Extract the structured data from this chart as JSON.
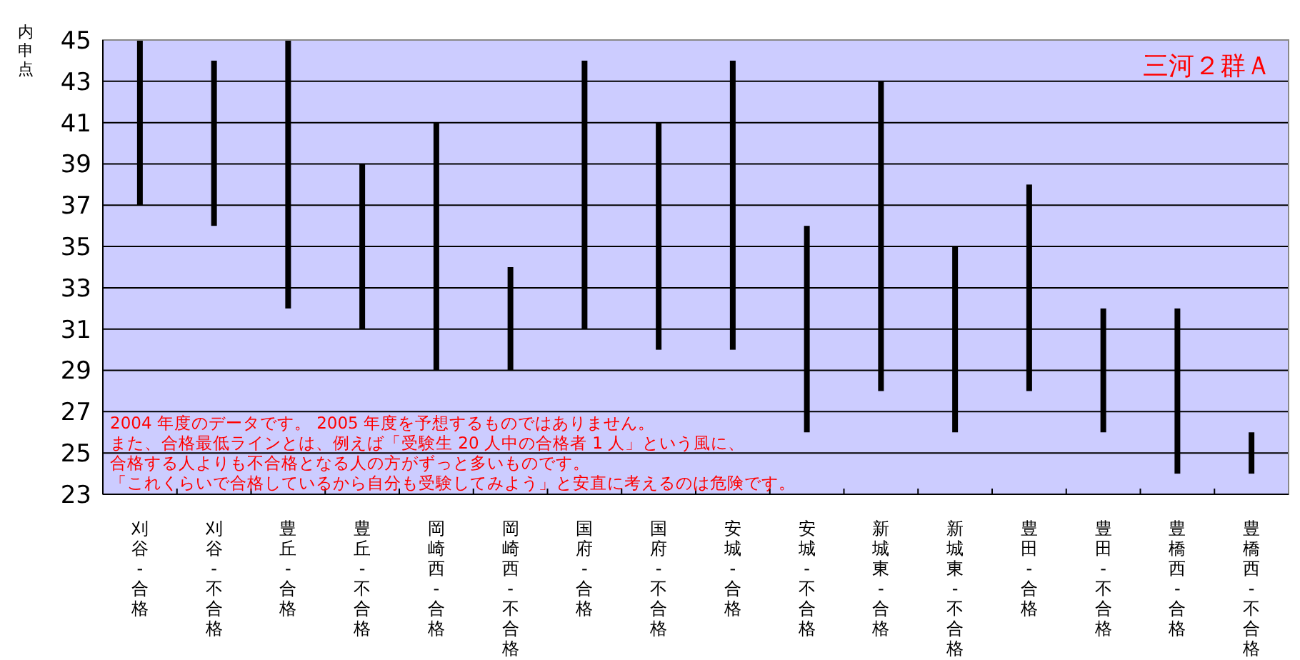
{
  "chart_data": {
    "type": "bar",
    "title": "三河２群Ａ",
    "ylabel": "内申点",
    "categories": [
      "刈谷-合格",
      "刈谷-不合格",
      "豊丘-合格",
      "豊丘-不合格",
      "岡崎西-合格",
      "岡崎西-不合格",
      "国府-合格",
      "国府-不合格",
      "安城-合格",
      "安城-不合格",
      "新城東-合格",
      "新城東-不合格",
      "豊田-合格",
      "豊田-不合格",
      "豊橋西-合格",
      "豊橋西-不合格"
    ],
    "base": [
      37,
      36,
      32,
      31,
      29,
      29,
      31,
      30,
      30,
      26,
      28,
      26,
      28,
      26,
      24,
      24
    ],
    "values": [
      8,
      8,
      13,
      8,
      12,
      5,
      13,
      11,
      14,
      10,
      15,
      9,
      10,
      6,
      8,
      2
    ],
    "color": "#000000",
    "ylim": [
      23,
      45
    ],
    "yticks": [
      23,
      25,
      27,
      29,
      31,
      33,
      35,
      37,
      39,
      41,
      43,
      45
    ],
    "grid": "y",
    "annotations": [
      "2004 年度のデータです。 2005 年度を予想するものではありません。",
      "また、合格最低ラインとは、例えば「受験生 20 人中の合格者 1 人」という風に、",
      "合格する人よりも不合格となる人の方がずっと多いものです。",
      "「これくらいで合格しているから自分も受験してみよう」と安直に考えるのは危険です。"
    ]
  }
}
